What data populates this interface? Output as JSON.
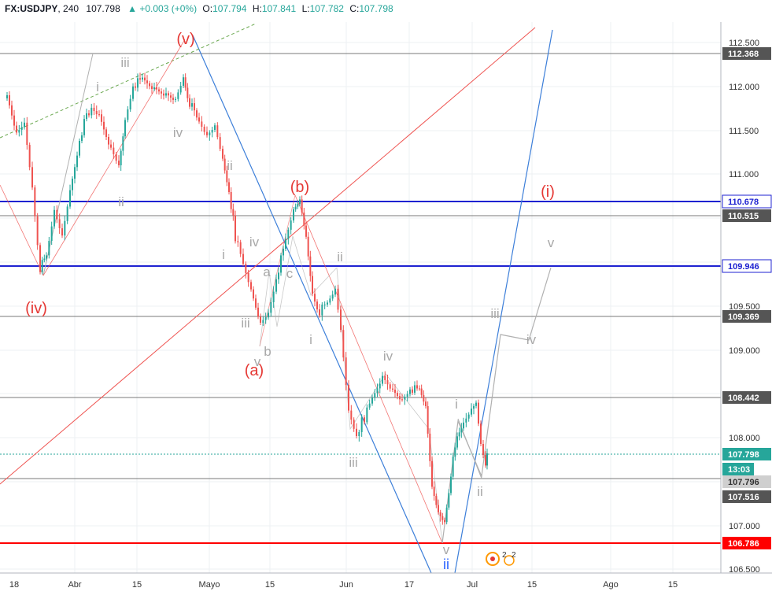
{
  "header": {
    "symbol": "FX:USDJPY",
    "interval": "240",
    "last": "107.798",
    "change": "▲ +0.003 (+0%)",
    "o_label": "O:",
    "o": "107.794",
    "h_label": "H:",
    "h": "107.841",
    "l_label": "L:",
    "l": "107.782",
    "c_label": "C:",
    "c": "107.798"
  },
  "price_axis": {
    "ticks": [
      "112.500",
      "112.000",
      "111.500",
      "111.000",
      "109.500",
      "109.000",
      "108.000",
      "107.000",
      "106.500"
    ],
    "labels": [
      {
        "text": "112.368",
        "style": "gray"
      },
      {
        "text": "110.678",
        "style": "blue"
      },
      {
        "text": "110.515",
        "style": "gray"
      },
      {
        "text": "109.946",
        "style": "blue"
      },
      {
        "text": "109.369",
        "style": "gray"
      },
      {
        "text": "108.442",
        "style": "gray"
      },
      {
        "text": "107.798",
        "style": "green"
      },
      {
        "text": "13:03",
        "style": "green-countdown"
      },
      {
        "text": "107.796",
        "style": "light"
      },
      {
        "text": "107.516",
        "style": "gray"
      },
      {
        "text": "106.786",
        "style": "red"
      }
    ]
  },
  "time_axis": {
    "ticks": [
      "18",
      "Abr",
      "15",
      "Mayo",
      "15",
      "Jun",
      "17",
      "Jul",
      "15",
      "Ago",
      "15"
    ]
  },
  "wave_labels": [
    {
      "text": "(v)",
      "color": "#e53935"
    },
    {
      "text": "(iv)",
      "color": "#e53935"
    },
    {
      "text": "(b)",
      "color": "#e53935"
    },
    {
      "text": "(a)",
      "color": "#e53935"
    },
    {
      "text": "(i)",
      "color": "#e53935"
    },
    {
      "text": "iii",
      "color": "#a8a8a8"
    },
    {
      "text": "i",
      "color": "#a8a8a8"
    },
    {
      "text": "iv",
      "color": "#a8a8a8"
    },
    {
      "text": "ii",
      "color": "#a8a8a8"
    },
    {
      "text": "ii",
      "color": "#a8a8a8"
    },
    {
      "text": "i",
      "color": "#a8a8a8"
    },
    {
      "text": "iv",
      "color": "#a8a8a8"
    },
    {
      "text": "a",
      "color": "#a8a8a8"
    },
    {
      "text": "c",
      "color": "#a8a8a8"
    },
    {
      "text": "iii",
      "color": "#a8a8a8"
    },
    {
      "text": "b",
      "color": "#a8a8a8"
    },
    {
      "text": "v",
      "color": "#a8a8a8"
    },
    {
      "text": "ii",
      "color": "#a8a8a8"
    },
    {
      "text": "i",
      "color": "#a8a8a8"
    },
    {
      "text": "iv",
      "color": "#a8a8a8"
    },
    {
      "text": "iii",
      "color": "#a8a8a8"
    },
    {
      "text": "i",
      "color": "#a8a8a8"
    },
    {
      "text": "v",
      "color": "#a8a8a8"
    },
    {
      "text": "ii",
      "color": "#a8a8a8"
    },
    {
      "text": "v",
      "color": "#a8a8a8"
    },
    {
      "text": "iii",
      "color": "#a8a8a8"
    },
    {
      "text": "iv",
      "color": "#a8a8a8"
    },
    {
      "text": "ii",
      "color": "#2962ff"
    }
  ],
  "event_badges": [
    "2",
    "2"
  ],
  "colors": {
    "bull": "#26a69a",
    "bear": "#ef5350",
    "blue_level": "#1e22d1",
    "red_level": "#ff0000",
    "gray_level": "#787878",
    "green_level": "#26a69a",
    "trend_blue": "#3d7fd9",
    "trend_red": "#ef5350"
  }
}
